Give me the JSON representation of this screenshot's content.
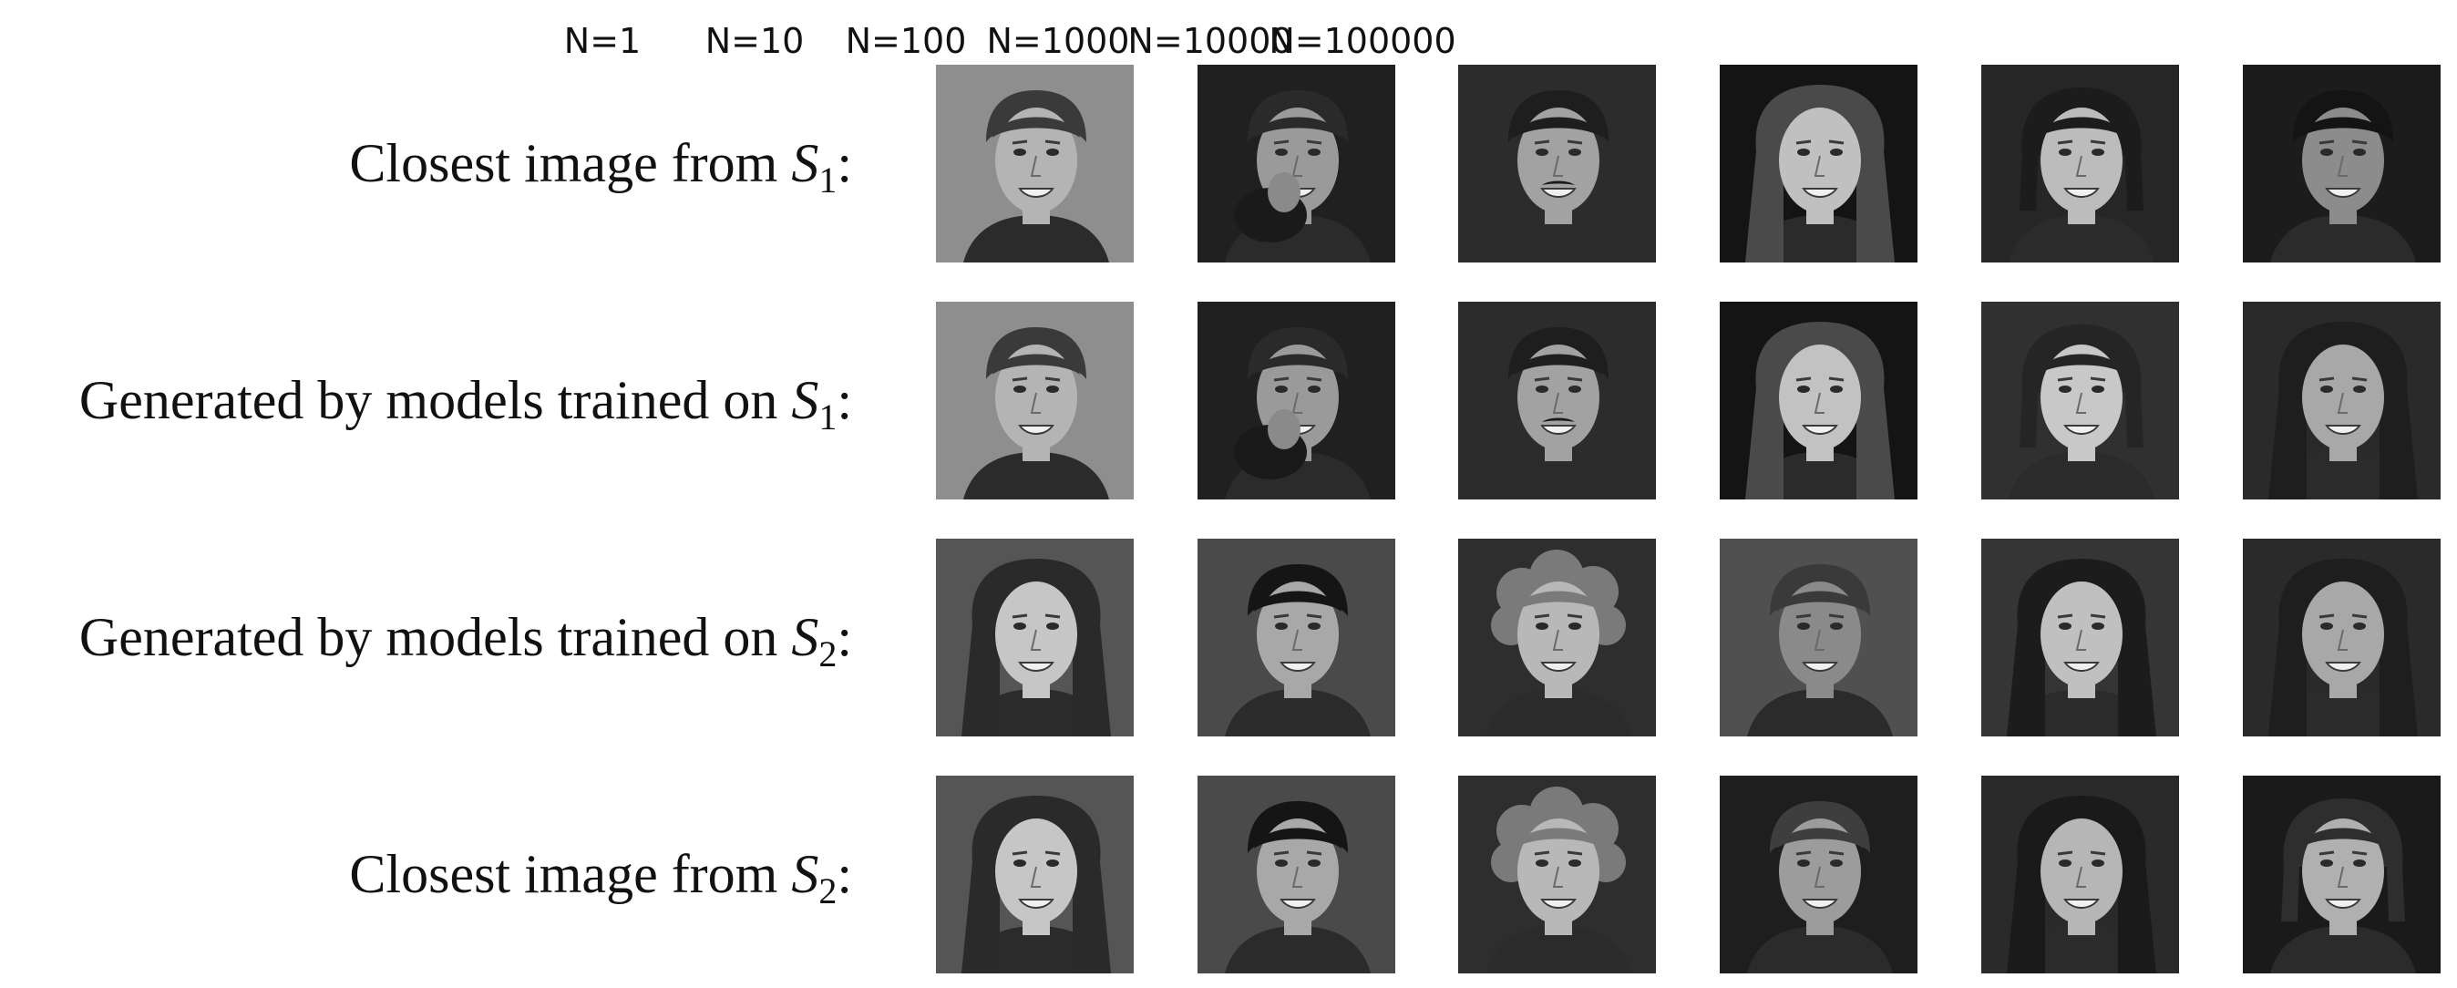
{
  "columns": [
    "N=1",
    "N=10",
    "N=100",
    "N=1000",
    "N=10000",
    "N=100000"
  ],
  "rows": [
    {
      "prefix": "Closest image from ",
      "symbol": "S",
      "subscript": "1",
      "suffix": ":"
    },
    {
      "prefix": "Generated by models trained on ",
      "symbol": "S",
      "subscript": "1",
      "suffix": ":"
    },
    {
      "prefix": "Generated by models trained on ",
      "symbol": "S",
      "subscript": "2",
      "suffix": ":"
    },
    {
      "prefix": "Closest image from ",
      "symbol": "S",
      "subscript": "2",
      "suffix": ":"
    }
  ],
  "thumbnails": [
    [
      {
        "bg": "#8e8e8e",
        "face": "#b4b4b4",
        "hair": "#3a3a3a",
        "hair_style": "short"
      },
      {
        "bg": "#202020",
        "face": "#9a9a9a",
        "hair": "#2a2a2a",
        "hair_style": "short",
        "hand": true
      },
      {
        "bg": "#2c2c2c",
        "face": "#a2a2a2",
        "hair": "#1e1e1e",
        "hair_style": "short",
        "mustache": true
      },
      {
        "bg": "#141414",
        "face": "#c0c0c0",
        "hair": "#4a4a4a",
        "hair_style": "long"
      },
      {
        "bg": "#262626",
        "face": "#bcbcbc",
        "hair": "#1c1c1c",
        "hair_style": "medium"
      },
      {
        "bg": "#1c1c1c",
        "face": "#8c8c8c",
        "hair": "#141414",
        "hair_style": "short"
      }
    ],
    [
      {
        "bg": "#8e8e8e",
        "face": "#b4b4b4",
        "hair": "#3a3a3a",
        "hair_style": "short"
      },
      {
        "bg": "#202020",
        "face": "#9a9a9a",
        "hair": "#2a2a2a",
        "hair_style": "short",
        "hand": true
      },
      {
        "bg": "#2c2c2c",
        "face": "#a2a2a2",
        "hair": "#1e1e1e",
        "hair_style": "short",
        "mustache": true
      },
      {
        "bg": "#141414",
        "face": "#c2c2c2",
        "hair": "#4a4a4a",
        "hair_style": "long"
      },
      {
        "bg": "#303030",
        "face": "#c8c8c8",
        "hair": "#252525",
        "hair_style": "medium"
      },
      {
        "bg": "#2a2a2a",
        "face": "#a8a8a8",
        "hair": "#1e1e1e",
        "hair_style": "long"
      }
    ],
    [
      {
        "bg": "#555555",
        "face": "#c6c6c6",
        "hair": "#2a2a2a",
        "hair_style": "long"
      },
      {
        "bg": "#4a4a4a",
        "face": "#a8a8a8",
        "hair": "#151515",
        "hair_style": "short"
      },
      {
        "bg": "#2e2e2e",
        "face": "#b8b8b8",
        "hair": "#7a7a7a",
        "hair_style": "curly"
      },
      {
        "bg": "#505050",
        "face": "#8a8a8a",
        "hair": "#3a3a3a",
        "hair_style": "short"
      },
      {
        "bg": "#353535",
        "face": "#c0c0c0",
        "hair": "#1c1c1c",
        "hair_style": "long"
      },
      {
        "bg": "#2a2a2a",
        "face": "#a8a8a8",
        "hair": "#1e1e1e",
        "hair_style": "long"
      }
    ],
    [
      {
        "bg": "#555555",
        "face": "#c6c6c6",
        "hair": "#2a2a2a",
        "hair_style": "long"
      },
      {
        "bg": "#4a4a4a",
        "face": "#a8a8a8",
        "hair": "#151515",
        "hair_style": "short"
      },
      {
        "bg": "#2e2e2e",
        "face": "#b8b8b8",
        "hair": "#7a7a7a",
        "hair_style": "curly"
      },
      {
        "bg": "#1e1e1e",
        "face": "#9c9c9c",
        "hair": "#3e3e3e",
        "hair_style": "short"
      },
      {
        "bg": "#2a2a2a",
        "face": "#b6b6b6",
        "hair": "#1a1a1a",
        "hair_style": "long"
      },
      {
        "bg": "#1a1a1a",
        "face": "#b0b0b0",
        "hair": "#2e2e2e",
        "hair_style": "medium"
      }
    ]
  ]
}
